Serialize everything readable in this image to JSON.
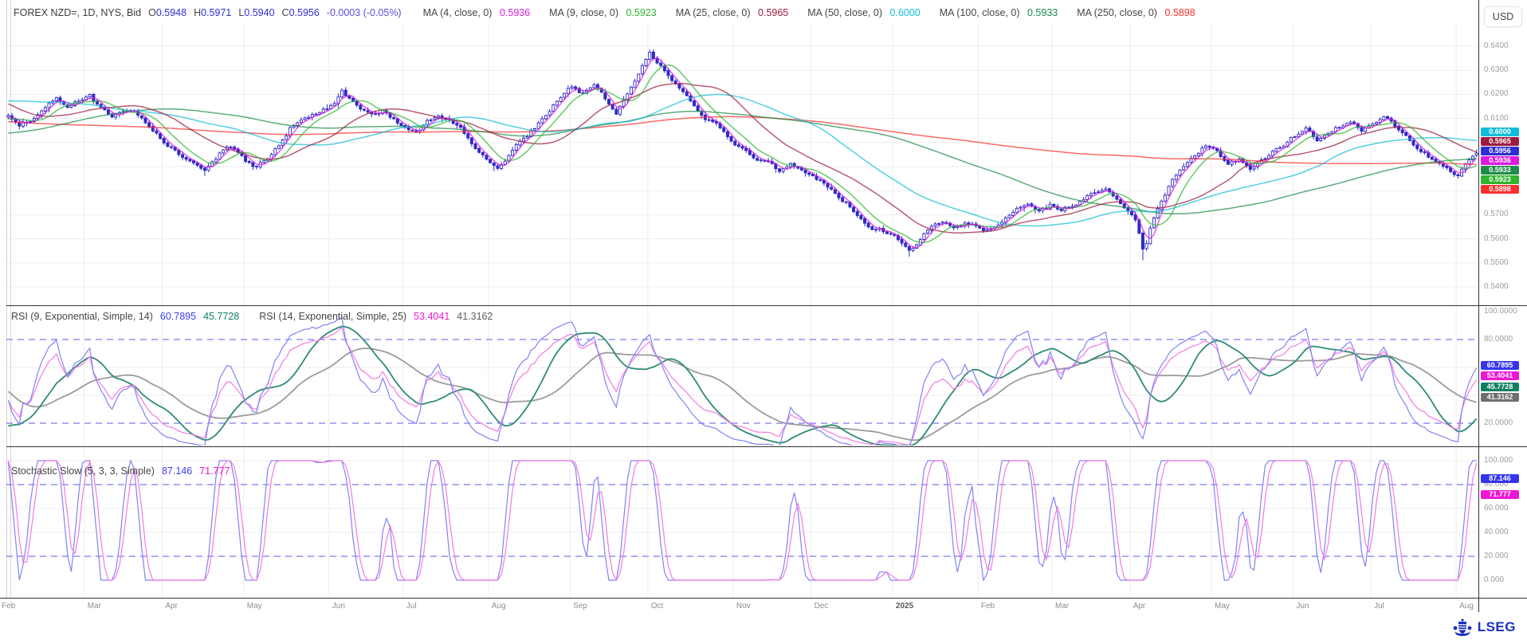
{
  "header": {
    "title": "FOREX NZD=, 1D, NYS, Bid",
    "ohlc": [
      {
        "label": "O",
        "value": "0.5948"
      },
      {
        "label": "H",
        "value": "0.5971"
      },
      {
        "label": "L",
        "value": "0.5940"
      },
      {
        "label": "C",
        "value": "0.5956"
      }
    ],
    "value_color": "#2e2ed6",
    "change": "-0.0003 (-0.05%)",
    "change_color": "#5a50d8",
    "mas": [
      {
        "label": "MA (4, close, 0)",
        "value": "0.5936",
        "period": 4,
        "color": "#db1add"
      },
      {
        "label": "MA (9, close, 0)",
        "value": "0.5923",
        "period": 9,
        "color": "#2eb42e"
      },
      {
        "label": "MA (25, close, 0)",
        "value": "0.5965",
        "period": 25,
        "color": "#9e1b3d"
      },
      {
        "label": "MA (50, close, 0)",
        "value": "0.6000",
        "period": 50,
        "color": "#10bcd8"
      },
      {
        "label": "MA (100, close, 0)",
        "value": "0.5933",
        "period": 100,
        "color": "#1d8c48"
      },
      {
        "label": "MA (250, close, 0)",
        "value": "0.5898",
        "period": 250,
        "color": "#fb2f2f"
      }
    ],
    "currency_button": "USD"
  },
  "rsi_header": {
    "label1": "RSI (9, Exponential, Simple, 14)",
    "v1": "60.7895",
    "v1_color": "#3c3cf0",
    "v2": "45.7728",
    "v2_color": "#0e7f62",
    "label2": "RSI (14, Exponential, Simple, 25)",
    "v3": "53.4041",
    "v3_color": "#ee16d4",
    "v4": "41.3162",
    "v4_color": "#5f5f5f"
  },
  "stoch_header": {
    "label": "Stochastic Slow (5, 3, 3, Simple)",
    "k": "87.146",
    "k_color": "#3c3cf0",
    "d": "71.777",
    "d_color": "#ee16d4"
  },
  "price_axis": {
    "ticks": [
      "0.6400",
      "0.6300",
      "0.6200",
      "0.6100",
      "0.5700",
      "0.5600",
      "0.5500",
      "0.5400"
    ],
    "badges": [
      {
        "text": "0.6000",
        "color": "#10bcd8"
      },
      {
        "text": "0.5965",
        "color": "#9e1b3d"
      },
      {
        "text": "0.5956",
        "color": "#2e2ed6"
      },
      {
        "text": "0.5936",
        "color": "#db1add"
      },
      {
        "text": "0.5933",
        "color": "#1d8c48"
      },
      {
        "text": "0.5923",
        "color": "#2eb42e"
      },
      {
        "text": "0.5898",
        "color": "#fb2f2f"
      }
    ]
  },
  "rsi_axis": {
    "ticks": [
      "100.0000",
      "80.0000",
      "20.0000"
    ],
    "badges": [
      {
        "text": "60.7895",
        "color": "#3434ee"
      },
      {
        "text": "53.4041",
        "color": "#ee16d4"
      },
      {
        "text": "45.7728",
        "color": "#0e7f62"
      },
      {
        "text": "41.3162",
        "color": "#6e6e6e"
      }
    ]
  },
  "stoch_axis": {
    "ticks": [
      "100.000",
      "80.000",
      "60.000",
      "40.000",
      "20.000",
      "0.000"
    ],
    "badges": [
      {
        "text": "87.146",
        "color": "#3434ee"
      },
      {
        "text": "71.777",
        "color": "#ee16d4"
      }
    ]
  },
  "footer": {
    "logo_text": "LSEG"
  },
  "chart_data": {
    "type": "candlestick",
    "symbol": "NZD=",
    "interval": "1D",
    "venue": "NYS",
    "side": "Bid",
    "visible_range": {
      "start": "2024-02-01",
      "end": "2025-08-08"
    },
    "price_range": [
      0.54,
      0.64
    ],
    "grid_step": 0.01,
    "candle_color": "#2d2ac9",
    "band_color": "#7b7bf0",
    "rsi_bands": [
      80,
      20
    ],
    "stoch_bands": [
      80,
      20
    ],
    "x_axis_months": [
      "Feb",
      "Mar",
      "Apr",
      "May",
      "Jun",
      "Jul",
      "Aug",
      "Sep",
      "Oct",
      "Nov",
      "Dec",
      "2025",
      "Feb",
      "Mar",
      "Apr",
      "May",
      "Jun",
      "Jul",
      "Aug"
    ],
    "rsi_params": {
      "rsi_fast": 9,
      "signal_fast": 14,
      "rsi_slow": 14,
      "signal_slow": 25
    },
    "stoch_params": {
      "k": 5,
      "slowing": 3,
      "d": 3
    },
    "close_anchors": [
      [
        0,
        0.611
      ],
      [
        3,
        0.6065
      ],
      [
        6,
        0.609
      ],
      [
        9,
        0.613
      ],
      [
        13,
        0.6185
      ],
      [
        16,
        0.615
      ],
      [
        19,
        0.6175
      ],
      [
        22,
        0.619
      ],
      [
        25,
        0.614
      ],
      [
        28,
        0.6105
      ],
      [
        31,
        0.6125
      ],
      [
        34,
        0.6135
      ],
      [
        37,
        0.608
      ],
      [
        40,
        0.604
      ],
      [
        42,
        0.6005
      ],
      [
        45,
        0.5965
      ],
      [
        48,
        0.5935
      ],
      [
        51,
        0.5905
      ],
      [
        53,
        0.588
      ],
      [
        56,
        0.5935
      ],
      [
        59,
        0.5985
      ],
      [
        62,
        0.5955
      ],
      [
        64,
        0.5915
      ],
      [
        67,
        0.59
      ],
      [
        70,
        0.5945
      ],
      [
        73,
        0.5995
      ],
      [
        76,
        0.6055
      ],
      [
        79,
        0.6095
      ],
      [
        82,
        0.612
      ],
      [
        85,
        0.614
      ],
      [
        88,
        0.6165
      ],
      [
        90,
        0.6215
      ],
      [
        92,
        0.6185
      ],
      [
        95,
        0.614
      ],
      [
        98,
        0.6115
      ],
      [
        101,
        0.6135
      ],
      [
        104,
        0.6095
      ],
      [
        107,
        0.6065
      ],
      [
        110,
        0.6045
      ],
      [
        113,
        0.6085
      ],
      [
        116,
        0.611
      ],
      [
        119,
        0.609
      ],
      [
        122,
        0.6055
      ],
      [
        125,
        0.5995
      ],
      [
        128,
        0.595
      ],
      [
        130,
        0.5915
      ],
      [
        132,
        0.589
      ],
      [
        134,
        0.593
      ],
      [
        137,
        0.599
      ],
      [
        140,
        0.603
      ],
      [
        143,
        0.608
      ],
      [
        146,
        0.613
      ],
      [
        149,
        0.619
      ],
      [
        152,
        0.624
      ],
      [
        155,
        0.621
      ],
      [
        158,
        0.6245
      ],
      [
        161,
        0.618
      ],
      [
        164,
        0.6125
      ],
      [
        167,
        0.62
      ],
      [
        170,
        0.629
      ],
      [
        173,
        0.6375
      ],
      [
        176,
        0.632
      ],
      [
        179,
        0.6255
      ],
      [
        182,
        0.621
      ],
      [
        185,
        0.615
      ],
      [
        188,
        0.6095
      ],
      [
        191,
        0.6075
      ],
      [
        194,
        0.603
      ],
      [
        196,
        0.5995
      ],
      [
        199,
        0.5965
      ],
      [
        202,
        0.593
      ],
      [
        205,
        0.5915
      ],
      [
        208,
        0.588
      ],
      [
        211,
        0.5905
      ],
      [
        214,
        0.5885
      ],
      [
        217,
        0.5865
      ],
      [
        220,
        0.5835
      ],
      [
        223,
        0.5785
      ],
      [
        226,
        0.575
      ],
      [
        229,
        0.57
      ],
      [
        232,
        0.5655
      ],
      [
        235,
        0.564
      ],
      [
        238,
        0.5625
      ],
      [
        241,
        0.5585
      ],
      [
        243,
        0.556
      ],
      [
        246,
        0.56
      ],
      [
        249,
        0.5655
      ],
      [
        252,
        0.567
      ],
      [
        255,
        0.5635
      ],
      [
        258,
        0.5665
      ],
      [
        261,
        0.565
      ],
      [
        263,
        0.5625
      ],
      [
        266,
        0.5655
      ],
      [
        269,
        0.569
      ],
      [
        272,
        0.572
      ],
      [
        275,
        0.574
      ],
      [
        278,
        0.572
      ],
      [
        281,
        0.5745
      ],
      [
        284,
        0.572
      ],
      [
        287,
        0.574
      ],
      [
        290,
        0.577
      ],
      [
        293,
        0.579
      ],
      [
        296,
        0.581
      ],
      [
        299,
        0.576
      ],
      [
        302,
        0.572
      ],
      [
        304,
        0.5685
      ],
      [
        306,
        0.556
      ],
      [
        307,
        0.5585
      ],
      [
        308,
        0.565
      ],
      [
        310,
        0.572
      ],
      [
        312,
        0.579
      ],
      [
        314,
        0.5855
      ],
      [
        317,
        0.5905
      ],
      [
        320,
        0.595
      ],
      [
        323,
        0.5995
      ],
      [
        326,
        0.596
      ],
      [
        329,
        0.5905
      ],
      [
        332,
        0.593
      ],
      [
        335,
        0.5895
      ],
      [
        338,
        0.5925
      ],
      [
        341,
        0.596
      ],
      [
        344,
        0.599
      ],
      [
        347,
        0.602
      ],
      [
        350,
        0.6055
      ],
      [
        353,
        0.6015
      ],
      [
        356,
        0.604
      ],
      [
        359,
        0.6065
      ],
      [
        362,
        0.608
      ],
      [
        365,
        0.6045
      ],
      [
        368,
        0.6075
      ],
      [
        371,
        0.611
      ],
      [
        374,
        0.6065
      ],
      [
        377,
        0.602
      ],
      [
        380,
        0.598
      ],
      [
        383,
        0.5945
      ],
      [
        386,
        0.5915
      ],
      [
        389,
        0.5885
      ],
      [
        391,
        0.586
      ],
      [
        393,
        0.5905
      ],
      [
        395,
        0.594
      ],
      [
        396,
        0.5956
      ]
    ],
    "leadin_anchors": [
      [
        -300,
        0.646
      ],
      [
        -270,
        0.639
      ],
      [
        -240,
        0.631
      ],
      [
        -210,
        0.622
      ],
      [
        -180,
        0.611
      ],
      [
        -160,
        0.601
      ],
      [
        -140,
        0.608
      ],
      [
        -120,
        0.597
      ],
      [
        -100,
        0.594
      ],
      [
        -85,
        0.58
      ],
      [
        -70,
        0.59
      ],
      [
        -55,
        0.6
      ],
      [
        -40,
        0.617
      ],
      [
        -25,
        0.628
      ],
      [
        -15,
        0.618
      ],
      [
        -8,
        0.609
      ],
      [
        -3,
        0.6105
      ]
    ],
    "wick_events": [
      {
        "i": 306,
        "extra": 0.0042
      },
      {
        "i": 243,
        "extra": 0.0016
      },
      {
        "i": 131,
        "extra": 0.0018
      },
      {
        "i": 53,
        "extra": 0.0012
      }
    ]
  }
}
